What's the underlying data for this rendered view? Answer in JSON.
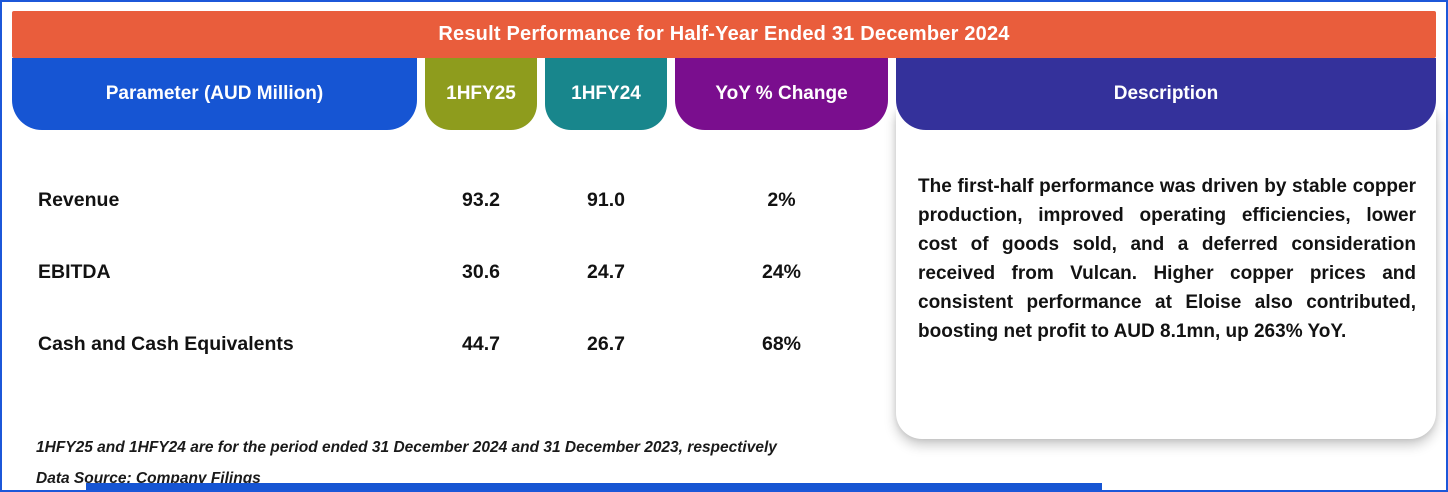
{
  "banner": {
    "title": "Result Performance for Half-Year Ended 31 December 2024"
  },
  "table": {
    "headers": [
      {
        "label": "Parameter (AUD Million)",
        "color": "#1655D3"
      },
      {
        "label": "1HFY25",
        "color": "#8E9C1D"
      },
      {
        "label": "1HFY24",
        "color": "#18868C"
      },
      {
        "label": "YoY % Change",
        "color": "#7A0E8E"
      }
    ],
    "rows": [
      {
        "parameter": "Revenue",
        "hfy25": "93.2",
        "hfy24": "91.0",
        "yoy": "2%"
      },
      {
        "parameter": "EBITDA",
        "hfy25": "30.6",
        "hfy24": "24.7",
        "yoy": "24%"
      },
      {
        "parameter": "Cash and Cash Equivalents",
        "hfy25": "44.7",
        "hfy24": "26.7",
        "yoy": "68%"
      }
    ]
  },
  "description": {
    "header": "Description",
    "header_color": "#34319B",
    "text": "The first-half performance was driven by stable copper production, improved operating efficiencies, lower cost of goods sold, and a deferred consideration received from Vulcan. Higher copper prices and consistent performance at Eloise also contributed, boosting net profit to AUD 8.1mn, up 263% YoY."
  },
  "footnotes": [
    "1HFY25 and 1HFY24 are for the period ended 31 December 2024 and 31 December 2023, respectively",
    "Data Source: Company Filings"
  ],
  "colors": {
    "banner": "#E95D3C",
    "frame_border": "#1C57D9",
    "bottom_strip": "#1655D3",
    "text": "#121212"
  },
  "chart_data": {
    "type": "table",
    "title": "Result Performance for Half-Year Ended 31 December 2024",
    "columns": [
      "Parameter (AUD Million)",
      "1HFY25",
      "1HFY24",
      "YoY % Change",
      "Description"
    ],
    "rows": [
      [
        "Revenue",
        93.2,
        91.0,
        "2%"
      ],
      [
        "EBITDA",
        30.6,
        24.7,
        "24%"
      ],
      [
        "Cash and Cash Equivalents",
        44.7,
        26.7,
        "68%"
      ]
    ],
    "description": "The first-half performance was driven by stable copper production, improved operating efficiencies, lower cost of goods sold, and a deferred consideration received from Vulcan. Higher copper prices and consistent performance at Eloise also contributed, boosting net profit to AUD 8.1mn, up 263% YoY.",
    "notes": [
      "1HFY25 and 1HFY24 are for the period ended 31 December 2024 and 31 December 2023, respectively",
      "Data Source: Company Filings"
    ]
  }
}
